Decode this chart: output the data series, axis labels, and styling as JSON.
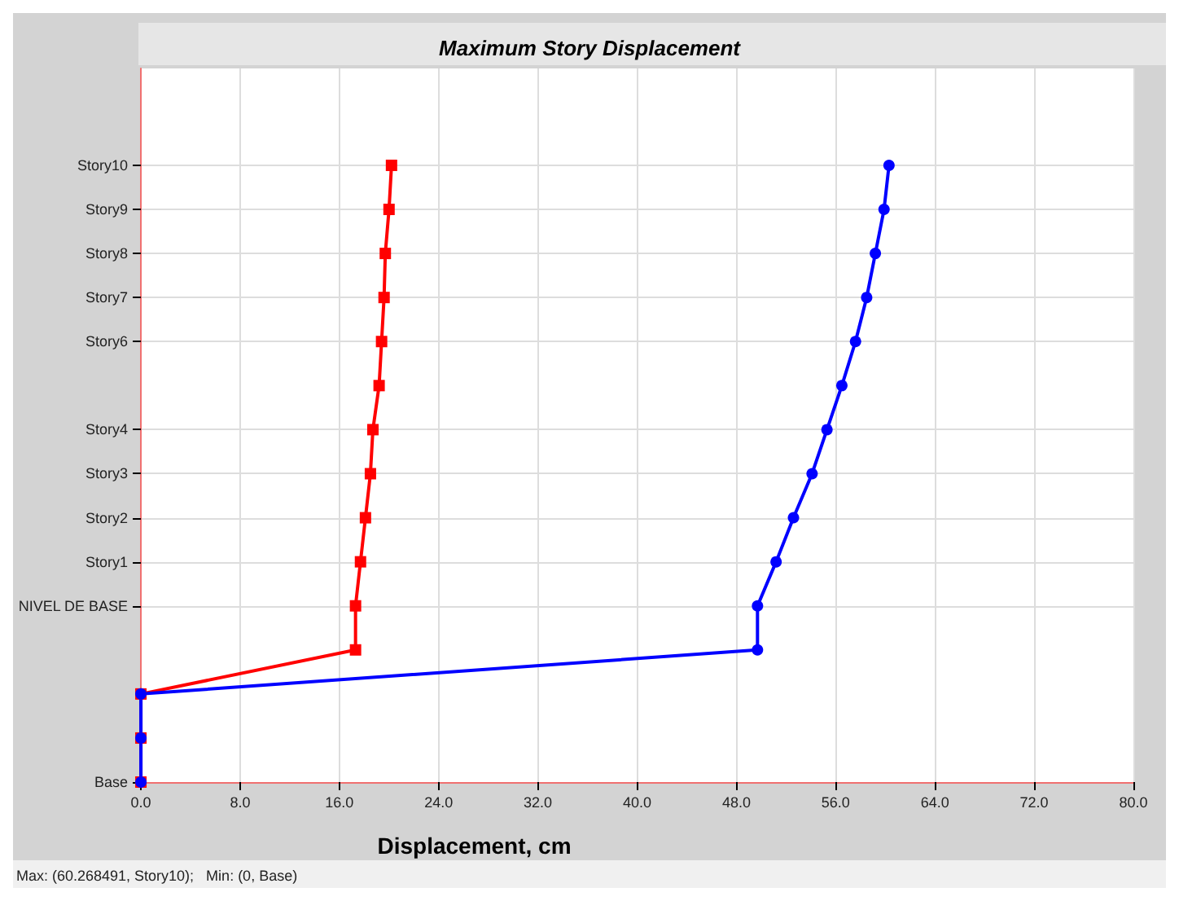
{
  "chart_data": {
    "type": "line",
    "orientation": "horizontal",
    "title": "Maximum Story Displacement",
    "xlabel": "Displacement, cm",
    "categories": [
      "Story10",
      "Story9",
      "Story8",
      "Story7",
      "Story6",
      null,
      "Story4",
      "Story3",
      "Story2",
      "Story1",
      "NIVEL DE BASE",
      null,
      null,
      null,
      "Base"
    ],
    "series": [
      {
        "color": "#ff0000",
        "marker": "square",
        "values": [
          20.2,
          20.0,
          19.7,
          19.6,
          19.4,
          19.2,
          18.7,
          18.5,
          18.1,
          17.7,
          17.3,
          17.3,
          0,
          0,
          0
        ]
      },
      {
        "color": "#0000ff",
        "marker": "circle",
        "values": [
          60.3,
          59.9,
          59.2,
          58.5,
          57.6,
          56.5,
          55.3,
          54.1,
          52.6,
          51.2,
          49.7,
          49.7,
          0,
          0,
          0
        ]
      }
    ],
    "xlim": [
      0,
      80
    ],
    "xticks": [
      {
        "value": 0,
        "label": "0.0"
      },
      {
        "value": 8,
        "label": "8.0"
      },
      {
        "value": 16,
        "label": "16.0"
      },
      {
        "value": 24,
        "label": "24.0"
      },
      {
        "value": 32,
        "label": "32.0"
      },
      {
        "value": 40,
        "label": "40.0"
      },
      {
        "value": 48,
        "label": "48.0"
      },
      {
        "value": 56,
        "label": "56.0"
      },
      {
        "value": 64,
        "label": "64.0"
      },
      {
        "value": 72,
        "label": "72.0"
      },
      {
        "value": 80,
        "label": "80.0"
      }
    ],
    "grid": true,
    "annotations": [
      "Max: (60.268491, Story10);   Min: (0, Base)"
    ]
  }
}
